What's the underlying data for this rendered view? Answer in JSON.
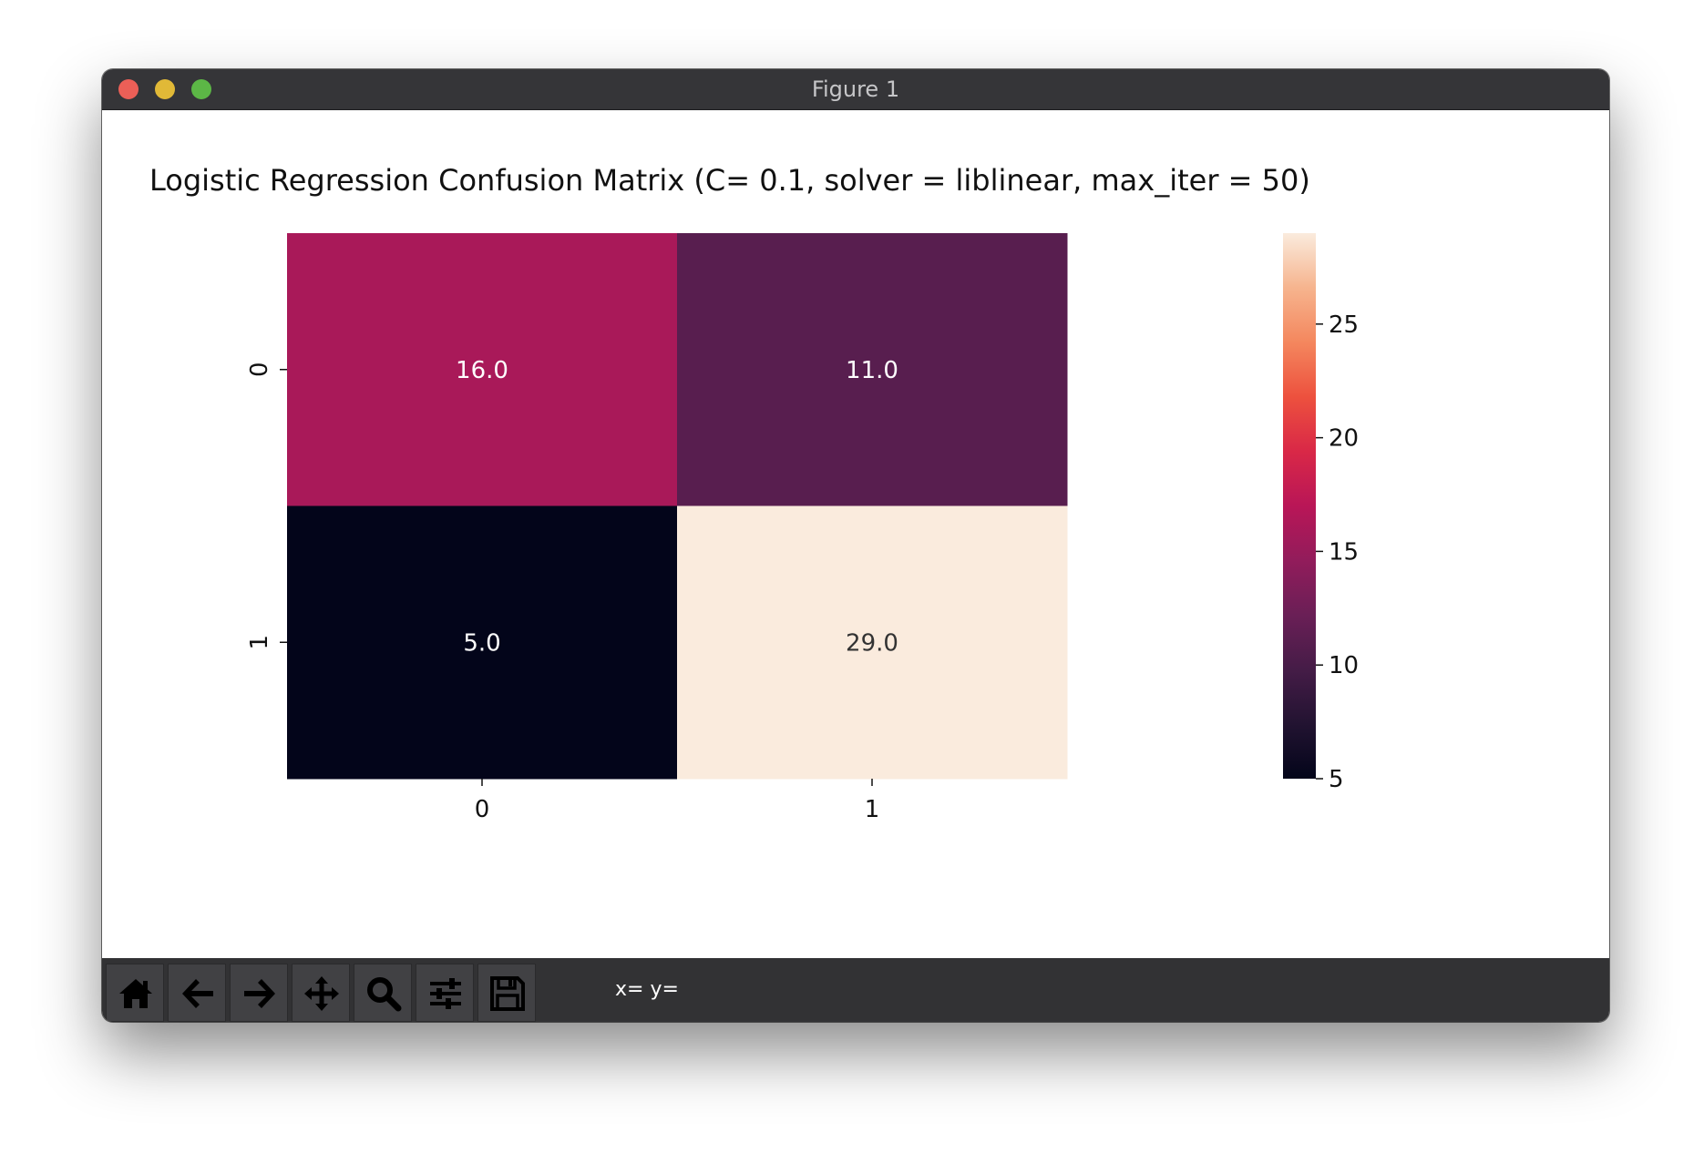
{
  "window": {
    "title": "Figure 1"
  },
  "toolbar": {
    "buttons": [
      {
        "name": "home-button",
        "icon": "home-icon"
      },
      {
        "name": "back-button",
        "icon": "arrow-left-icon"
      },
      {
        "name": "forward-button",
        "icon": "arrow-right-icon"
      },
      {
        "name": "pan-button",
        "icon": "move-icon"
      },
      {
        "name": "zoom-button",
        "icon": "search-icon"
      },
      {
        "name": "configure-subplots-button",
        "icon": "sliders-icon"
      },
      {
        "name": "save-button",
        "icon": "save-icon"
      }
    ],
    "coordinates": "x= y="
  },
  "chart_data": {
    "type": "heatmap",
    "title": "Logistic Regression Confusion Matrix (C= 0.1, solver = liblinear, max_iter = 50)",
    "x_labels": [
      "0",
      "1"
    ],
    "y_labels": [
      "0",
      "1"
    ],
    "values": [
      [
        16.0,
        11.0
      ],
      [
        5.0,
        29.0
      ]
    ],
    "annotations": [
      [
        "16.0",
        "11.0"
      ],
      [
        "5.0",
        "29.0"
      ]
    ],
    "colormap": "rocket",
    "colorbar": {
      "min": 5,
      "max": 29,
      "ticks": [
        5,
        10,
        15,
        20,
        25
      ]
    },
    "colors": {
      "low": "#03051a",
      "high": "#faebdd",
      "annotation_light": "#ffffff",
      "annotation_dark": "#333333"
    },
    "grid": false
  }
}
